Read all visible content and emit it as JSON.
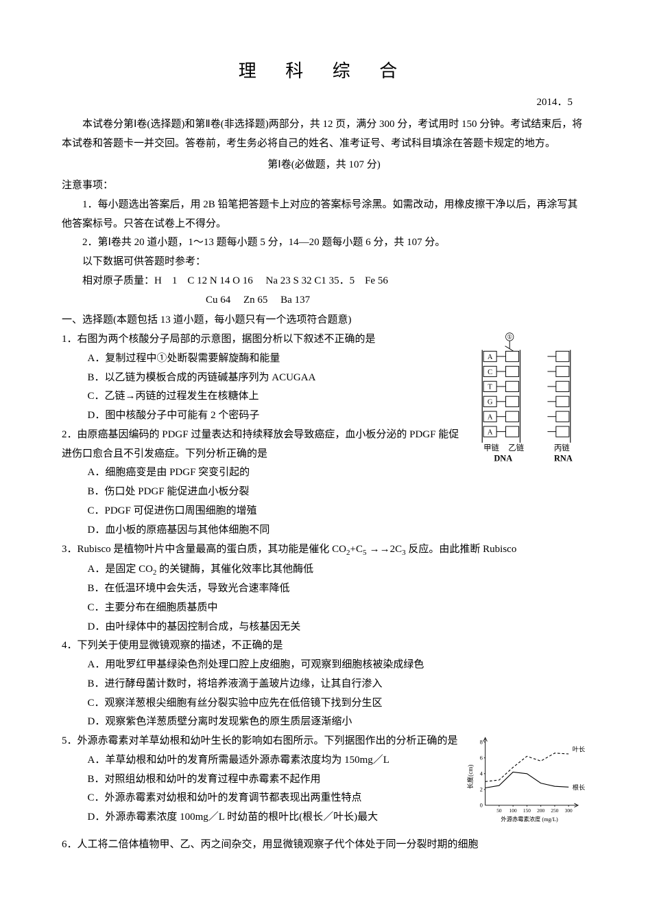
{
  "title": "理 科 综 合",
  "date": "2014．5",
  "intro1": "本试卷分第Ⅰ卷(选择题)和第Ⅱ卷(非选择题)两部分，共 12 页，满分 300 分，考试用时 150 分钟。考试结束后，将本试卷和答题卡一并交回。答卷前，考生务必将自己的姓名、准考证号、考试科目填涂在答题卡规定的地方。",
  "section1": "第Ⅰ卷(必做题，共 107 分)",
  "note_header": "注意事项：",
  "note1": "1．每小题选出答案后，用 2B 铅笔把答题卡上对应的答案标号涂黑。如需改动，用橡皮擦干净以后，再涂写其他答案标号。只答在试卷上不得分。",
  "note2": "2．第Ⅰ卷共 20 道小题，1～13 题每小题 5 分，14—20 题每小题 6 分，共 107 分。",
  "ref_header": "以下数据可供答题时参考：",
  "ref1": "相对原子质量：H　1　C 12 N 14 O 16　 Na 23 S 32 C1 35．5　Fe 56",
  "ref2": "Cu 64　 Zn 65　 Ba 137",
  "mc_header": "一、选择题(本题包括 13 道小题，每小题只有一个选项符合题意)",
  "q1": {
    "text": "1．右图为两个核酸分子局部的示意图，据图分析以下叙述不正确的是",
    "a": "A．复制过程中①处断裂需要解旋酶和能量",
    "b": "B．以乙链为模板合成的丙链碱基序列为 ACUGAA",
    "c": "C．乙链→丙链的过程发生在核糖体上",
    "d": "D．图中核酸分子中可能有 2 个密码子"
  },
  "q2": {
    "text": "2．由原癌基因编码的 PDGF 过量表达和持续释放会导致癌症，血小板分泌的 PDGF 能促进伤口愈合且不引发癌症。下列分析正确的是",
    "a": "A．细胞癌变是由 PDGF 突变引起的",
    "b": "B．伤口处 PDGF 能促进血小板分裂",
    "c": "C．PDGF 可促进伤口周围细胞的增殖",
    "d": "D．血小板的原癌基因与其他体细胞不同"
  },
  "q3": {
    "text_a": "3．Rubisco 是植物叶片中含量最高的蛋白质，其功能是催化 CO",
    "text_b": "+C",
    "text_c": "→2C",
    "text_d": " 反应。由此推断 Rubisco",
    "a_a": "A．是固定 CO",
    "a_b": " 的关键酶，其催化效率比其他酶低",
    "b": "B．在低温环境中会失活，导致光合速率降低",
    "c": "C．主要分布在细胞质基质中",
    "d": "D．由叶绿体中的基因控制合成，与核基因无关"
  },
  "q4": {
    "text": "4．下列关于使用显微镜观察的描述，不正确的是",
    "a": "A．用吡罗红甲基绿染色剂处理口腔上皮细胞，可观察到细胞核被染成绿色",
    "b": "B．进行酵母菌计数时，将培养液滴于盖玻片边缘，让其自行渗入",
    "c": "C．观察洋葱根尖细胞有丝分裂实验中应先在低倍镜下找到分生区",
    "d": "D．观察紫色洋葱质壁分离时发现紫色的原生质层逐渐缩小"
  },
  "q5": {
    "text": "5．外源赤霉素对羊草幼根和幼叶生长的影响如右图所示。下列据图作出的分析正确的是",
    "a": "A．羊草幼根和幼叶的发育所需最适外源赤霉素浓度均为 150mg／L",
    "b": "B．对照组幼根和幼叶的发育过程中赤霉素不起作用",
    "c": "C．外源赤霉素对幼根和幼叶的发育调节都表现出两重性特点",
    "d": "D．外源赤霉素浓度 100mg／L 时幼苗的根叶比(根长／叶长)最大"
  },
  "q6": {
    "text": "6．人工将二倍体植物甲、乙、丙之间杂交，用显微镜观察子代个体处于同一分裂时期的细胞"
  },
  "dna": {
    "bases": [
      "A",
      "C",
      "T",
      "G",
      "A",
      "A"
    ],
    "label_jia": "甲链",
    "label_yi": "乙链",
    "label_bing": "丙链",
    "label_dna": "DNA",
    "label_rna": "RNA",
    "marker": "①",
    "box_stroke": "#000000",
    "box_fill": "#ffffff",
    "line_color": "#000000"
  },
  "chart": {
    "y_label": "长度(cm)",
    "x_label": "外源赤霉素浓度 (mg/L)",
    "y_ticks": [
      "0",
      "2",
      "4",
      "6",
      "8"
    ],
    "x_ticks": [
      "50",
      "100",
      "150",
      "200",
      "250",
      "300"
    ],
    "leaf_label": "叶长",
    "root_label": "根长",
    "ylim": [
      0,
      8
    ],
    "xlim": [
      0,
      300
    ],
    "leaf_data": [
      [
        0,
        3.0
      ],
      [
        50,
        3.2
      ],
      [
        100,
        4.8
      ],
      [
        150,
        6.2
      ],
      [
        200,
        5.6
      ],
      [
        250,
        6.6
      ],
      [
        300,
        6.5
      ]
    ],
    "root_data": [
      [
        0,
        2.2
      ],
      [
        50,
        2.5
      ],
      [
        100,
        4.2
      ],
      [
        150,
        4.0
      ],
      [
        200,
        2.8
      ],
      [
        250,
        2.4
      ],
      [
        300,
        2.3
      ]
    ],
    "axis_color": "#000000",
    "leaf_style": "dashed",
    "root_style": "solid",
    "line_color": "#000000",
    "background": "#ffffff"
  }
}
